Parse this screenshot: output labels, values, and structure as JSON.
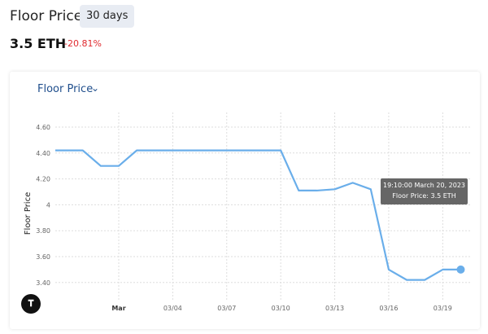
{
  "header": {
    "title": "Floor Price",
    "range_label": "30 days",
    "price": "3.5 ETH",
    "change": "-20.81%"
  },
  "chart_selector": {
    "label": "Floor Price",
    "chevron": "chevron-down-icon"
  },
  "tooltip": {
    "line1": "19:10:00 March 20, 2023",
    "line2": "Floor Price: 3.5 ETH"
  },
  "colors": {
    "line": "#6aaeea",
    "change_negative": "#e0292e",
    "accent": "#1f4e8c"
  },
  "logo": "TV",
  "chart_data": {
    "type": "line",
    "ylabel": "Floor Price",
    "ylim": [
      3.34,
      4.66
    ],
    "yticks": [
      "4.60",
      "4.40",
      "4.20",
      "4",
      "3.80",
      "3.60",
      "3.40"
    ],
    "ytick_values": [
      4.6,
      4.4,
      4.2,
      4.0,
      3.8,
      3.6,
      3.4
    ],
    "xtick_labels": [
      "Mar",
      "03/04",
      "03/07",
      "03/10",
      "03/13",
      "03/16",
      "03/19"
    ],
    "grid": true,
    "series": [
      {
        "x": [
          "02/26",
          "02/27",
          "02/28",
          "03/01",
          "03/02",
          "03/03",
          "03/04",
          "03/05",
          "03/06",
          "03/07",
          "03/08",
          "03/09",
          "03/10",
          "03/11",
          "03/12",
          "03/13",
          "03/14",
          "03/15",
          "03/16",
          "03/17",
          "03/18",
          "03/19",
          "03/20"
        ],
        "values": [
          4.42,
          4.42,
          4.3,
          4.3,
          4.42,
          4.42,
          4.42,
          4.42,
          4.42,
          4.42,
          4.42,
          4.42,
          4.42,
          4.11,
          4.11,
          4.12,
          4.17,
          4.12,
          3.5,
          3.42,
          3.42,
          3.5,
          3.5
        ]
      }
    ]
  }
}
